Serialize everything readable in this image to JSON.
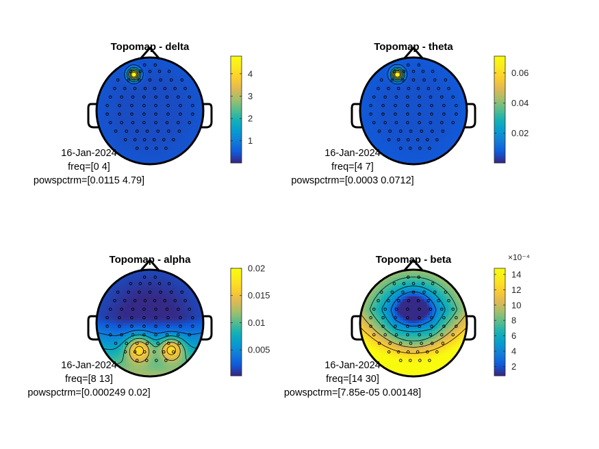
{
  "chart_data": [
    {
      "type": "heatmap",
      "title": "Topomap - delta",
      "annotation": [
        "16-Jan-2024",
        "freq=[0 4]",
        "powspctrm=[0.0115 4.79]"
      ],
      "colorbar": {
        "range": [
          0.0115,
          4.79
        ],
        "ticks": [
          1,
          2,
          3,
          4
        ],
        "tick_labels": [
          "1",
          "2",
          "3",
          "4"
        ],
        "exponent_label": ""
      },
      "hotspots": [
        {
          "x": -0.3,
          "y": 0.68,
          "value": 4.79,
          "spread": 0.07
        }
      ],
      "baseline": 0.35
    },
    {
      "type": "heatmap",
      "title": "Topomap - theta",
      "annotation": [
        "16-Jan-2024",
        "freq=[4 7]",
        "powspctrm=[0.0003 0.0712]"
      ],
      "colorbar": {
        "range": [
          0.0003,
          0.0712
        ],
        "ticks": [
          0.02,
          0.04,
          0.06
        ],
        "tick_labels": [
          "0.02",
          "0.04",
          "0.06"
        ],
        "exponent_label": ""
      },
      "hotspots": [
        {
          "x": -0.3,
          "y": 0.68,
          "value": 0.0712,
          "spread": 0.07
        }
      ],
      "baseline": 0.006
    },
    {
      "type": "heatmap",
      "title": "Topomap - alpha",
      "annotation": [
        "16-Jan-2024",
        "freq=[8 13]",
        "powspctrm=[0.000249 0.02]"
      ],
      "colorbar": {
        "range": [
          0.000249,
          0.02
        ],
        "ticks": [
          0.005,
          0.01,
          0.015,
          0.02
        ],
        "tick_labels": [
          "0.005",
          "0.01",
          "0.015",
          "0.02"
        ],
        "exponent_label": ""
      },
      "hotspots": [
        {
          "x": -0.2,
          "y": -0.48,
          "value": 0.02,
          "spread": 0.18
        },
        {
          "x": 0.4,
          "y": -0.48,
          "value": 0.019,
          "spread": 0.16
        }
      ],
      "baseline": 0.001
    },
    {
      "type": "heatmap",
      "title": "Topomap - beta",
      "annotation": [
        "16-Jan-2024",
        "freq=[14 30]",
        "powspctrm=[7.85e-05 0.00148]"
      ],
      "colorbar": {
        "range": [
          7.85e-05,
          0.00148
        ],
        "ticks": [
          0.0002,
          0.0004,
          0.0006,
          0.0008,
          0.001,
          0.0012,
          0.0014
        ],
        "tick_labels": [
          "2",
          "4",
          "6",
          "8",
          "10",
          "12",
          "14"
        ],
        "exponent_label": "×10⁻⁴"
      },
      "hotspots": [],
      "baseline": 0.0001
    }
  ]
}
